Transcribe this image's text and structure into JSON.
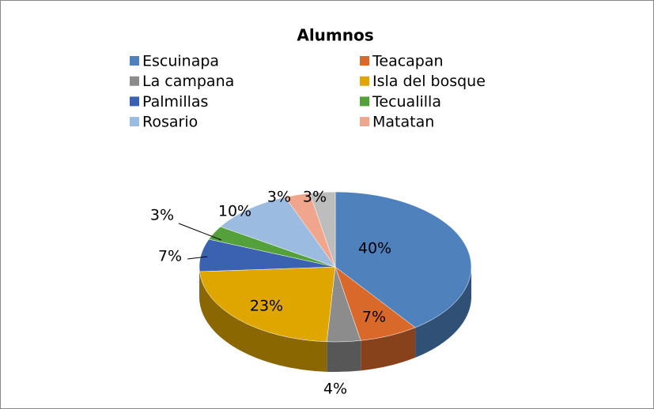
{
  "chart_data": {
    "type": "pie3d",
    "title": "Alumnos",
    "categories": [
      "Escuinapa",
      "Teacapan",
      "La campana",
      "Isla del bosque",
      "Palmillas",
      "Tecualilla",
      "Rosario",
      "Matatan",
      null
    ],
    "values": [
      40,
      7,
      4,
      23,
      7,
      3,
      10,
      3,
      3
    ],
    "value_labels": [
      "40%",
      "7%",
      "4%",
      "23%",
      "7%",
      "3%",
      "10%",
      "3%",
      "3%"
    ],
    "colors": [
      "#4f81bd",
      "#d9692b",
      "#8c8c8c",
      "#dfa600",
      "#3a62b0",
      "#54a03a",
      "#9cbbe0",
      "#f0a68d",
      "#bdbdbd"
    ],
    "legend": "top"
  }
}
